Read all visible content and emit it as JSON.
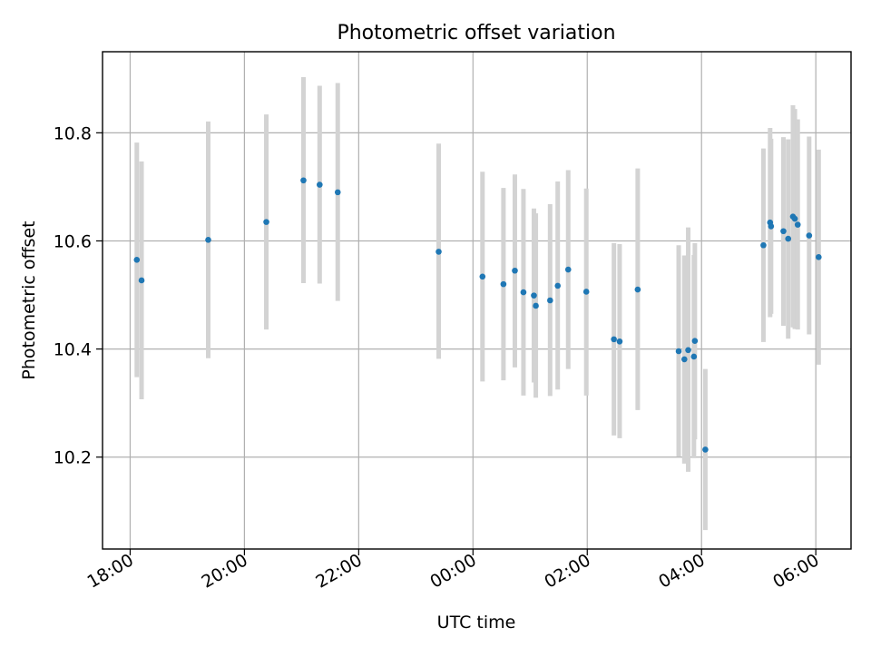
{
  "chart_data": {
    "type": "scatter",
    "title": "Photometric offset variation",
    "xlabel": "UTC time",
    "ylabel": "Photometric offset",
    "x_ticks": [
      {
        "time": "18:00",
        "label": "18:00"
      },
      {
        "time": "20:00",
        "label": "20:00"
      },
      {
        "time": "22:00",
        "label": "22:00"
      },
      {
        "time": "00:00",
        "label": "00:00"
      },
      {
        "time": "02:00",
        "label": "02:00"
      },
      {
        "time": "04:00",
        "label": "04:00"
      },
      {
        "time": "06:00",
        "label": "06:00"
      }
    ],
    "y_ticks": [
      "10.2",
      "10.4",
      "10.6",
      "10.8"
    ],
    "xlim": [
      "17:31",
      "06:37"
    ],
    "ylim": [
      10.03,
      10.95
    ],
    "grid": true,
    "colors": {
      "points": "#1f77b4",
      "error_bars": "#d3d3d3",
      "grid": "#b0b0b0"
    },
    "points": [
      {
        "x": "18:07",
        "y": 10.565,
        "lo": 10.348,
        "hi": 10.782
      },
      {
        "x": "18:12",
        "y": 10.527,
        "lo": 10.307,
        "hi": 10.747
      },
      {
        "x": "19:22",
        "y": 10.602,
        "lo": 10.383,
        "hi": 10.821
      },
      {
        "x": "20:23",
        "y": 10.635,
        "lo": 10.436,
        "hi": 10.834
      },
      {
        "x": "21:02",
        "y": 10.712,
        "lo": 10.522,
        "hi": 10.903
      },
      {
        "x": "21:19",
        "y": 10.704,
        "lo": 10.521,
        "hi": 10.887
      },
      {
        "x": "21:38",
        "y": 10.69,
        "lo": 10.489,
        "hi": 10.892
      },
      {
        "x": "23:24",
        "y": 10.58,
        "lo": 10.382,
        "hi": 10.78
      },
      {
        "x": "00:10",
        "y": 10.534,
        "lo": 10.34,
        "hi": 10.728
      },
      {
        "x": "00:32",
        "y": 10.52,
        "lo": 10.342,
        "hi": 10.698
      },
      {
        "x": "00:44",
        "y": 10.545,
        "lo": 10.366,
        "hi": 10.723
      },
      {
        "x": "00:53",
        "y": 10.505,
        "lo": 10.314,
        "hi": 10.696
      },
      {
        "x": "01:04",
        "y": 10.499,
        "lo": 10.338,
        "hi": 10.66
      },
      {
        "x": "01:06",
        "y": 10.48,
        "lo": 10.31,
        "hi": 10.651
      },
      {
        "x": "01:21",
        "y": 10.49,
        "lo": 10.313,
        "hi": 10.668
      },
      {
        "x": "01:29",
        "y": 10.517,
        "lo": 10.325,
        "hi": 10.71
      },
      {
        "x": "01:40",
        "y": 10.547,
        "lo": 10.363,
        "hi": 10.731
      },
      {
        "x": "01:59",
        "y": 10.506,
        "lo": 10.314,
        "hi": 10.697
      },
      {
        "x": "02:28",
        "y": 10.418,
        "lo": 10.24,
        "hi": 10.596
      },
      {
        "x": "02:34",
        "y": 10.414,
        "lo": 10.235,
        "hi": 10.594
      },
      {
        "x": "02:53",
        "y": 10.51,
        "lo": 10.287,
        "hi": 10.734
      },
      {
        "x": "03:36",
        "y": 10.396,
        "lo": 10.201,
        "hi": 10.592
      },
      {
        "x": "03:42",
        "y": 10.381,
        "lo": 10.188,
        "hi": 10.573
      },
      {
        "x": "03:46",
        "y": 10.398,
        "lo": 10.173,
        "hi": 10.625
      },
      {
        "x": "03:52",
        "y": 10.386,
        "lo": 10.198,
        "hi": 10.574
      },
      {
        "x": "03:53",
        "y": 10.415,
        "lo": 10.233,
        "hi": 10.596
      },
      {
        "x": "04:04",
        "y": 10.214,
        "lo": 10.065,
        "hi": 10.363
      },
      {
        "x": "05:05",
        "y": 10.592,
        "lo": 10.413,
        "hi": 10.771
      },
      {
        "x": "05:12",
        "y": 10.634,
        "lo": 10.459,
        "hi": 10.809
      },
      {
        "x": "05:13",
        "y": 10.627,
        "lo": 10.465,
        "hi": 10.789
      },
      {
        "x": "05:26",
        "y": 10.618,
        "lo": 10.443,
        "hi": 10.792
      },
      {
        "x": "05:31",
        "y": 10.604,
        "lo": 10.419,
        "hi": 10.788
      },
      {
        "x": "05:36",
        "y": 10.645,
        "lo": 10.44,
        "hi": 10.851
      },
      {
        "x": "05:38",
        "y": 10.641,
        "lo": 10.437,
        "hi": 10.844
      },
      {
        "x": "05:41",
        "y": 10.63,
        "lo": 10.436,
        "hi": 10.825
      },
      {
        "x": "05:53",
        "y": 10.61,
        "lo": 10.427,
        "hi": 10.793
      },
      {
        "x": "06:03",
        "y": 10.57,
        "lo": 10.371,
        "hi": 10.769
      }
    ]
  }
}
